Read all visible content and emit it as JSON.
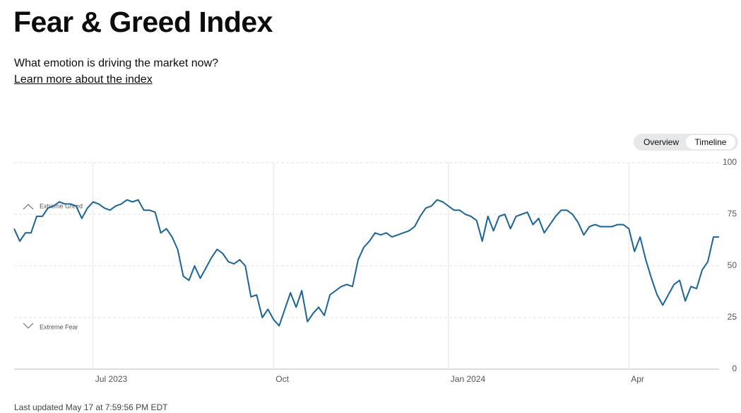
{
  "header": {
    "title": "Fear & Greed Index",
    "subtitle": "What emotion is driving the market now?",
    "link": "Learn more about the index"
  },
  "toggle": [
    "Overview",
    "Timeline"
  ],
  "footer": "Last updated May 17 at 7:59:56 PM EDT",
  "chart_data": {
    "type": "line",
    "annotations": [
      "Extreme Greed",
      "Extreme Fear"
    ],
    "categories": [
      null,
      null,
      null,
      null,
      null,
      null,
      null,
      null,
      null,
      null,
      null,
      null,
      null,
      null,
      "Jul 2023",
      null,
      null,
      null,
      null,
      null,
      null,
      null,
      null,
      null,
      null,
      null,
      null,
      null,
      null,
      null,
      null,
      null,
      null,
      null,
      null,
      null,
      null,
      null,
      null,
      null,
      null,
      null,
      null,
      null,
      null,
      null,
      "Oct",
      null,
      null,
      null,
      null,
      null,
      null,
      null,
      null,
      null,
      null,
      null,
      null,
      null,
      null,
      null,
      null,
      null,
      null,
      null,
      null,
      null,
      null,
      null,
      null,
      null,
      null,
      null,
      null,
      null,
      null,
      "Jan 2024",
      null,
      null,
      null,
      null,
      null,
      null,
      null,
      null,
      null,
      null,
      null,
      null,
      null,
      null,
      null,
      null,
      null,
      null,
      null,
      null,
      null,
      null,
      null,
      null,
      null,
      null,
      null,
      null,
      null,
      null,
      null,
      "Apr",
      null,
      null,
      null,
      null,
      null,
      null,
      null,
      null,
      null,
      null,
      null,
      null,
      null,
      null,
      null,
      null
    ],
    "series": [
      {
        "color": "#1a6496",
        "values": [
          68,
          62,
          66,
          66,
          74,
          74,
          78,
          79,
          81,
          80,
          80,
          79,
          73,
          78,
          81,
          80,
          78,
          77,
          79,
          80,
          82,
          81,
          82,
          77,
          77,
          76,
          66,
          68,
          64,
          58,
          45,
          43,
          50,
          44,
          49,
          54,
          58,
          56,
          52,
          51,
          53,
          50,
          35,
          36,
          25,
          29,
          24,
          21,
          29,
          37,
          30,
          38,
          23,
          27,
          30,
          26,
          36,
          38,
          40,
          41,
          40,
          53,
          59,
          62,
          66,
          65,
          66,
          64,
          65,
          66,
          67,
          69,
          74,
          78,
          79,
          82,
          81,
          79,
          77,
          77,
          75,
          74,
          72,
          62,
          74,
          67,
          74,
          75,
          68,
          74,
          75,
          76,
          70,
          73,
          66,
          70,
          74,
          77,
          77,
          75,
          71,
          65,
          69,
          70,
          69,
          69,
          69,
          70,
          70,
          68,
          57,
          64,
          53,
          44,
          36,
          31,
          36,
          41,
          43,
          33,
          40,
          39,
          48,
          52,
          64,
          64
        ]
      }
    ],
    "ylim": [
      0,
      100
    ],
    "yticks": [
      0,
      25,
      50,
      75,
      100
    ],
    "grid": true
  }
}
